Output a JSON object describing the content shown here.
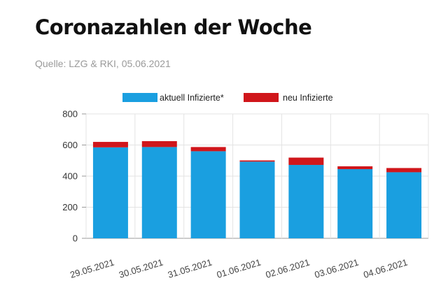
{
  "header": {
    "title": "Coronazahlen der Woche",
    "source": "Quelle: LZG & RKI, 05.06.2021"
  },
  "chart_data": {
    "type": "bar",
    "stacked": true,
    "categories": [
      "29.05.2021",
      "30.05.2021",
      "31.05.2021",
      "01.06.2021",
      "02.06.2021",
      "03.06.2021",
      "04.06.2021"
    ],
    "series": [
      {
        "name": "aktuell Infizierte*",
        "color": "#1a9fe0",
        "values": [
          585,
          587,
          560,
          493,
          472,
          445,
          425
        ]
      },
      {
        "name": "neu Infizierte",
        "color": "#d0161b",
        "values": [
          35,
          38,
          27,
          8,
          47,
          18,
          27
        ]
      }
    ],
    "ylim": [
      0,
      800
    ],
    "yticks": [
      0,
      200,
      400,
      600,
      800
    ],
    "grid": true,
    "legend_position": "top-center"
  }
}
